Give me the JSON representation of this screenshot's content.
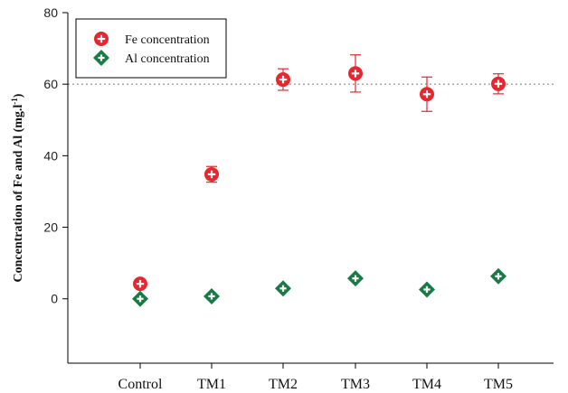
{
  "chart_data": {
    "type": "scatter",
    "categories": [
      "Control",
      "TM1",
      "TM2",
      "TM3",
      "TM4",
      "TM5"
    ],
    "ylabel_main": "Concentration of Fe and Al (mg.l",
    "ylabel_sup": "-1",
    "ylabel_close": ")",
    "ylim": [
      -18,
      80
    ],
    "yticks": [
      0,
      20,
      40,
      60,
      80
    ],
    "grid": "horizontal dotted at 60",
    "legend_position": "top-left",
    "series": [
      {
        "name": "Fe concentration",
        "color": "#e8262e",
        "marker": "circle",
        "values": [
          4.2,
          34.8,
          61.3,
          63.0,
          57.2,
          60.1
        ],
        "err": [
          0,
          2.2,
          3.0,
          5.2,
          4.8,
          2.8
        ]
      },
      {
        "name": "Al concentration",
        "color": "#1a7a45",
        "marker": "diamond",
        "values": [
          0.0,
          0.7,
          2.9,
          5.7,
          2.6,
          6.3
        ],
        "err": [
          0,
          0,
          0,
          0,
          0,
          0
        ]
      }
    ]
  }
}
